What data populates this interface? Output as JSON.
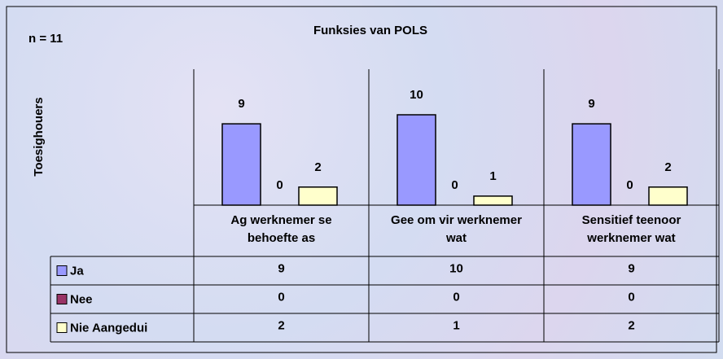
{
  "chart_data": {
    "type": "bar",
    "title": "Funksies van POLS",
    "subtitle": "n = 11",
    "y_label": "Toesighouers",
    "categories": [
      "Ag werknemer se behoefte as",
      "Gee om vir werknemer wat",
      "Sensitief teenoor werknemer wat"
    ],
    "series": [
      {
        "name": "Ja",
        "color": "#9999ff",
        "values": [
          9,
          10,
          9
        ]
      },
      {
        "name": "Nee",
        "color": "#993366",
        "values": [
          0,
          0,
          0
        ]
      },
      {
        "name": "Nie Aangedui",
        "color": "#ffffcc",
        "values": [
          2,
          1,
          2
        ]
      }
    ],
    "data_table": true
  }
}
